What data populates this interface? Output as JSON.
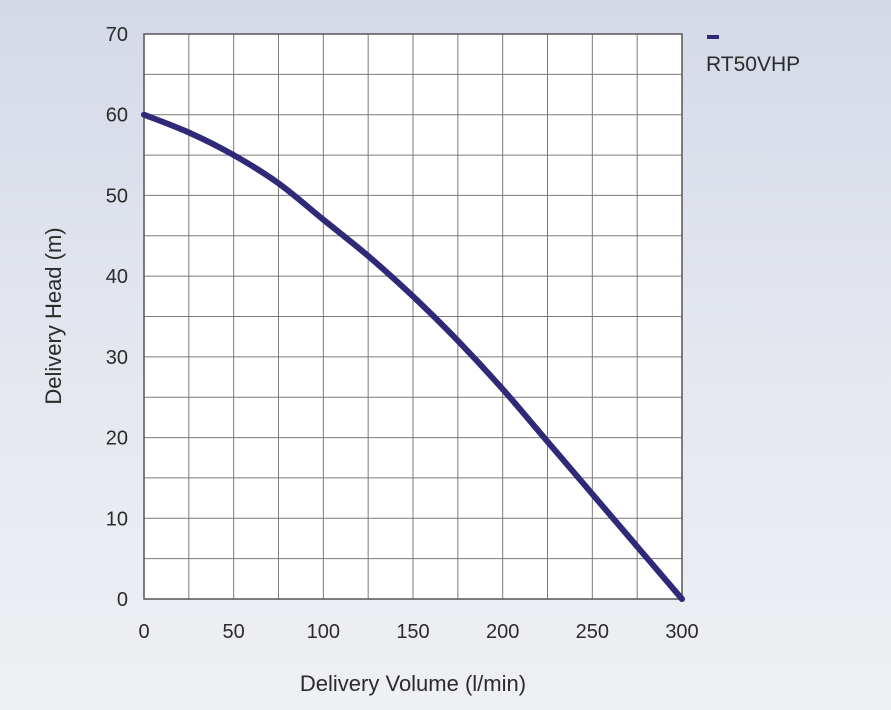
{
  "chart_data": {
    "type": "line",
    "title": "",
    "xlabel": "Delivery Volume (l/min)",
    "ylabel": "Delivery Head (m)",
    "xlim": [
      0,
      300
    ],
    "ylim": [
      0,
      70
    ],
    "x_ticks": [
      0,
      50,
      100,
      150,
      200,
      250,
      300
    ],
    "y_ticks": [
      0,
      10,
      20,
      30,
      40,
      50,
      60,
      70
    ],
    "x_minor_step": 25,
    "y_minor_step": 5,
    "grid": true,
    "legend": "top-right",
    "series": [
      {
        "name": "RT50VHP",
        "color": "#2e2a78",
        "x": [
          0,
          25,
          50,
          75,
          100,
          125,
          150,
          175,
          200,
          225,
          250,
          275,
          300
        ],
        "y": [
          60,
          57.8,
          55,
          51.5,
          47,
          42.5,
          37.5,
          32,
          26,
          19.5,
          13,
          6.5,
          0
        ]
      }
    ]
  }
}
